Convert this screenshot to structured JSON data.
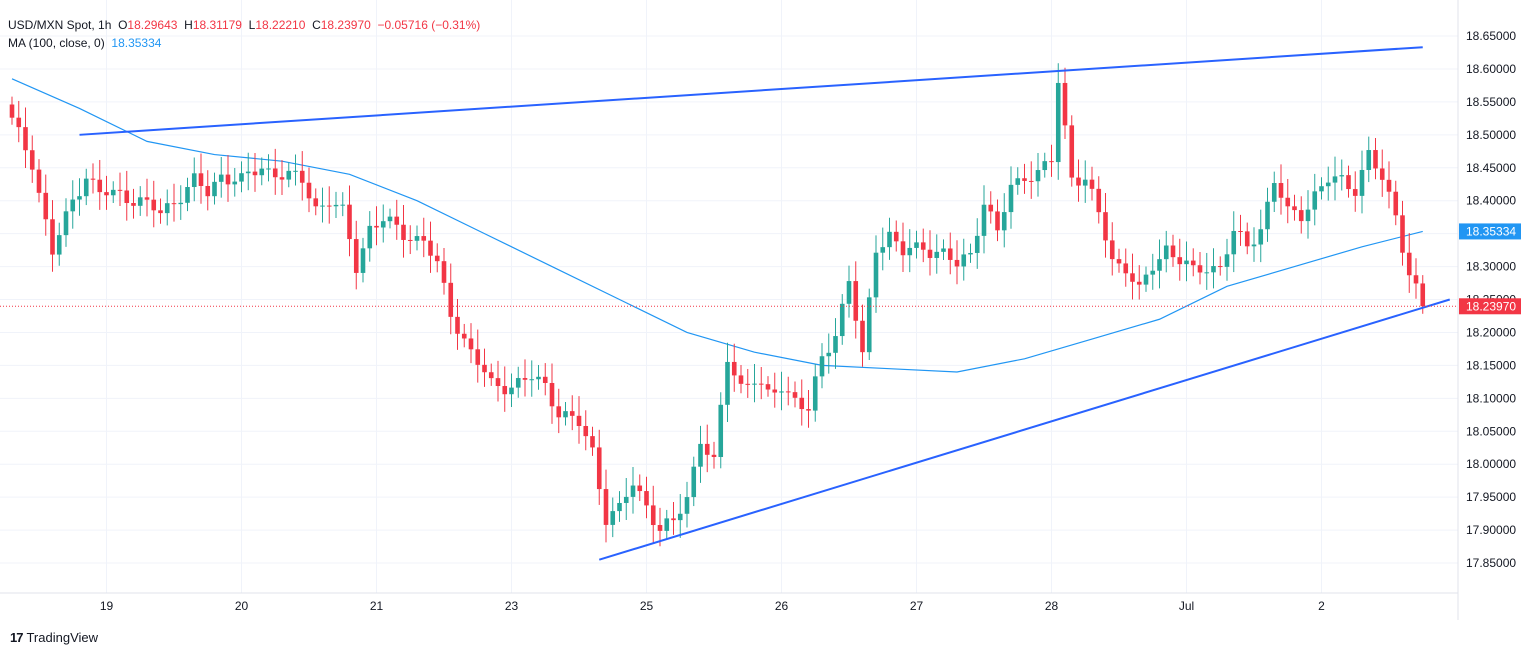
{
  "legend": {
    "symbol": "USD/MXN Spot",
    "interval": "1h",
    "o_label": "O",
    "o_value": "18.29643",
    "h_label": "H",
    "h_value": "18.31179",
    "l_label": "L",
    "l_value": "18.22210",
    "c_label": "C",
    "c_value": "18.23970",
    "change": "−0.05716 (−0.31%)",
    "ma_label": "MA (100, close, 0)",
    "ma_value": "18.35334"
  },
  "brand": {
    "logo": "17",
    "name": "TradingView"
  },
  "colors": {
    "up": "#26a69a",
    "down": "#f23645",
    "ma": "#2196f3",
    "trendline": "#2962ff",
    "grid": "#f0f3fa",
    "axis_text": "#131722"
  },
  "chart_data": {
    "type": "candlestick",
    "symbol": "USD/MXN Spot",
    "interval": "1h",
    "ylim": [
      17.8,
      18.67
    ],
    "y_ticks": [
      "18.65000",
      "18.60000",
      "18.55000",
      "18.50000",
      "18.45000",
      "18.40000",
      "18.35000",
      "18.30000",
      "18.25000",
      "18.20000",
      "18.15000",
      "18.10000",
      "18.05000",
      "18.00000",
      "17.95000",
      "17.90000",
      "17.85000"
    ],
    "x_ticks": [
      {
        "label": "19",
        "index": 14
      },
      {
        "label": "20",
        "index": 34
      },
      {
        "label": "21",
        "index": 54
      },
      {
        "label": "23",
        "index": 74
      },
      {
        "label": "25",
        "index": 94
      },
      {
        "label": "26",
        "index": 114
      },
      {
        "label": "27",
        "index": 134
      },
      {
        "label": "28",
        "index": 154
      },
      {
        "label": "Jul",
        "index": 174
      },
      {
        "label": "2",
        "index": 194
      }
    ],
    "last_price": {
      "value": 18.2397,
      "label": "18.23970"
    },
    "ma_last": {
      "value": 18.35334,
      "label": "18.35334"
    },
    "trendlines": [
      {
        "name": "upper",
        "from": {
          "index": 10,
          "value": 18.5
        },
        "to": {
          "index": 209,
          "value": 18.633
        }
      },
      {
        "name": "lower",
        "from": {
          "index": 87,
          "value": 17.855
        },
        "to": {
          "index": 213,
          "value": 18.25
        }
      }
    ],
    "close_anchors": [
      [
        0,
        18.52
      ],
      [
        3,
        18.46
      ],
      [
        6,
        18.32
      ],
      [
        9,
        18.4
      ],
      [
        11,
        18.44
      ],
      [
        13,
        18.41
      ],
      [
        16,
        18.41
      ],
      [
        19,
        18.4
      ],
      [
        22,
        18.38
      ],
      [
        25,
        18.41
      ],
      [
        27,
        18.43
      ],
      [
        29,
        18.41
      ],
      [
        31,
        18.44
      ],
      [
        34,
        18.43
      ],
      [
        37,
        18.45
      ],
      [
        40,
        18.44
      ],
      [
        43,
        18.43
      ],
      [
        45,
        18.39
      ],
      [
        47,
        18.4
      ],
      [
        49,
        18.38
      ],
      [
        51,
        18.3
      ],
      [
        53,
        18.36
      ],
      [
        55,
        18.37
      ],
      [
        58,
        18.35
      ],
      [
        61,
        18.34
      ],
      [
        63,
        18.3
      ],
      [
        65,
        18.23
      ],
      [
        68,
        18.17
      ],
      [
        71,
        18.12
      ],
      [
        74,
        18.12
      ],
      [
        77,
        18.13
      ],
      [
        79,
        18.12
      ],
      [
        81,
        18.08
      ],
      [
        84,
        18.06
      ],
      [
        86,
        18.02
      ],
      [
        88,
        17.92
      ],
      [
        90,
        17.93
      ],
      [
        92,
        17.97
      ],
      [
        94,
        17.94
      ],
      [
        96,
        17.9
      ],
      [
        98,
        17.91
      ],
      [
        100,
        17.95
      ],
      [
        102,
        18.04
      ],
      [
        104,
        18.0
      ],
      [
        106,
        18.16
      ],
      [
        108,
        18.12
      ],
      [
        110,
        18.13
      ],
      [
        112,
        18.1
      ],
      [
        114,
        18.12
      ],
      [
        116,
        18.1
      ],
      [
        118,
        18.08
      ],
      [
        120,
        18.16
      ],
      [
        122,
        18.2
      ],
      [
        124,
        18.28
      ],
      [
        126,
        18.16
      ],
      [
        128,
        18.33
      ],
      [
        130,
        18.35
      ],
      [
        132,
        18.32
      ],
      [
        135,
        18.33
      ],
      [
        138,
        18.32
      ],
      [
        140,
        18.3
      ],
      [
        142,
        18.32
      ],
      [
        144,
        18.4
      ],
      [
        146,
        18.35
      ],
      [
        148,
        18.42
      ],
      [
        150,
        18.44
      ],
      [
        152,
        18.44
      ],
      [
        154,
        18.46
      ],
      [
        155,
        18.58
      ],
      [
        157,
        18.44
      ],
      [
        159,
        18.43
      ],
      [
        161,
        18.38
      ],
      [
        163,
        18.31
      ],
      [
        165,
        18.3
      ],
      [
        167,
        18.26
      ],
      [
        169,
        18.3
      ],
      [
        171,
        18.33
      ],
      [
        173,
        18.31
      ],
      [
        175,
        18.29
      ],
      [
        177,
        18.3
      ],
      [
        179,
        18.3
      ],
      [
        181,
        18.35
      ],
      [
        183,
        18.33
      ],
      [
        185,
        18.36
      ],
      [
        187,
        18.43
      ],
      [
        189,
        18.38
      ],
      [
        191,
        18.38
      ],
      [
        193,
        18.41
      ],
      [
        195,
        18.43
      ],
      [
        197,
        18.43
      ],
      [
        199,
        18.42
      ],
      [
        201,
        18.47
      ],
      [
        203,
        18.43
      ],
      [
        205,
        18.38
      ],
      [
        207,
        18.29
      ],
      [
        209,
        18.2397
      ]
    ],
    "ma_series": [
      [
        0,
        18.585
      ],
      [
        10,
        18.54
      ],
      [
        20,
        18.49
      ],
      [
        30,
        18.47
      ],
      [
        40,
        18.46
      ],
      [
        50,
        18.44
      ],
      [
        60,
        18.4
      ],
      [
        70,
        18.35
      ],
      [
        80,
        18.3
      ],
      [
        90,
        18.25
      ],
      [
        100,
        18.2
      ],
      [
        110,
        18.17
      ],
      [
        120,
        18.15
      ],
      [
        130,
        18.145
      ],
      [
        140,
        18.14
      ],
      [
        150,
        18.16
      ],
      [
        160,
        18.19
      ],
      [
        170,
        18.22
      ],
      [
        180,
        18.27
      ],
      [
        190,
        18.3
      ],
      [
        200,
        18.33
      ],
      [
        209,
        18.35334
      ]
    ]
  }
}
